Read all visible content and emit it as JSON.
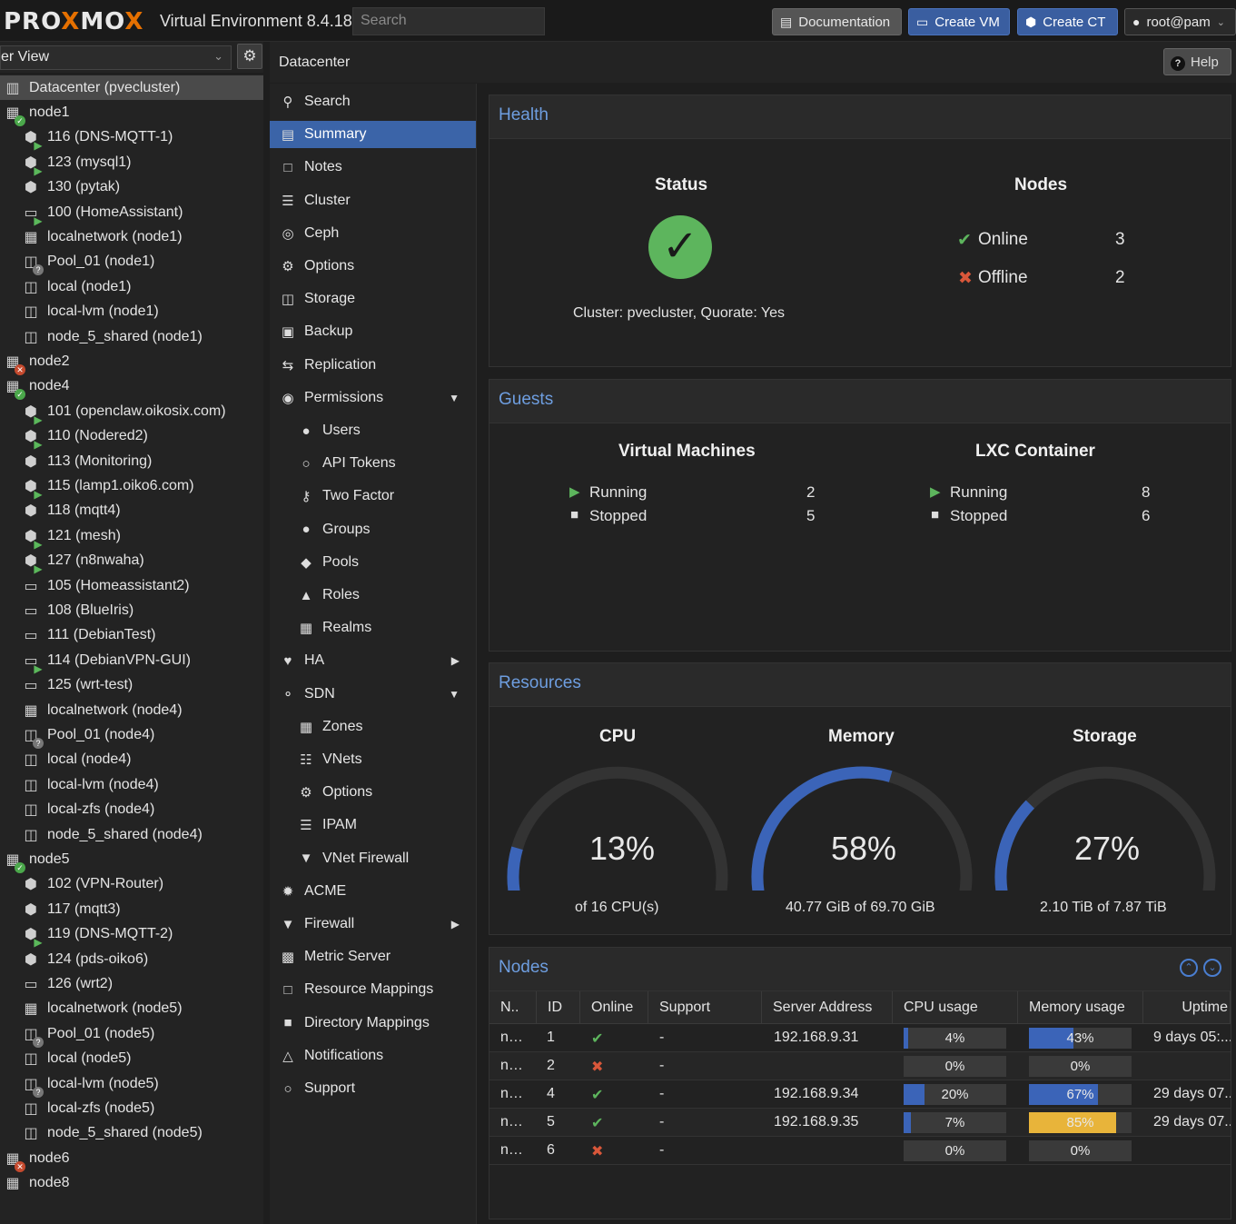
{
  "header": {
    "logo": "PROXMOX",
    "product": "Virtual Environment 8.4.18",
    "search_placeholder": "Search",
    "buttons": {
      "documentation": "Documentation",
      "create_vm": "Create VM",
      "create_ct": "Create CT",
      "user": "root@pam"
    }
  },
  "tree": {
    "view": "er View",
    "items": [
      {
        "label": "Datacenter (pvecluster)",
        "icon": "datacenter-icon"
      },
      {
        "label": "node1",
        "icon": "node-online-icon"
      },
      {
        "label": "116 (DNS-MQTT-1)",
        "icon": "container-running-icon"
      },
      {
        "label": "123 (mysql1)",
        "icon": "container-running-icon"
      },
      {
        "label": "130 (pytak)",
        "icon": "container-stopped-icon"
      },
      {
        "label": "100 (HomeAssistant)",
        "icon": "vm-running-icon"
      },
      {
        "label": "localnetwork (node1)",
        "icon": "network-icon"
      },
      {
        "label": "Pool_01 (node1)",
        "icon": "storage-unknown-icon"
      },
      {
        "label": "local (node1)",
        "icon": "storage-icon"
      },
      {
        "label": "local-lvm (node1)",
        "icon": "storage-icon"
      },
      {
        "label": "node_5_shared (node1)",
        "icon": "storage-icon"
      },
      {
        "label": "node2",
        "icon": "node-offline-icon"
      },
      {
        "label": "node4",
        "icon": "node-online-icon"
      },
      {
        "label": "101 (openclaw.oikosix.com)",
        "icon": "container-running-icon"
      },
      {
        "label": "110 (Nodered2)",
        "icon": "container-running-icon"
      },
      {
        "label": "113 (Monitoring)",
        "icon": "container-stopped-icon"
      },
      {
        "label": "115 (lamp1.oiko6.com)",
        "icon": "container-running-icon"
      },
      {
        "label": "118 (mqtt4)",
        "icon": "container-stopped-icon"
      },
      {
        "label": "121 (mesh)",
        "icon": "container-running-icon"
      },
      {
        "label": "127 (n8nwaha)",
        "icon": "container-running-icon"
      },
      {
        "label": "105 (Homeassistant2)",
        "icon": "vm-stopped-icon"
      },
      {
        "label": "108 (BlueIris)",
        "icon": "vm-stopped-icon"
      },
      {
        "label": "111 (DebianTest)",
        "icon": "vm-stopped-icon"
      },
      {
        "label": "114 (DebianVPN-GUI)",
        "icon": "vm-running-icon"
      },
      {
        "label": "125 (wrt-test)",
        "icon": "vm-stopped-icon"
      },
      {
        "label": "localnetwork (node4)",
        "icon": "network-icon"
      },
      {
        "label": "Pool_01 (node4)",
        "icon": "storage-unknown-icon"
      },
      {
        "label": "local (node4)",
        "icon": "storage-icon"
      },
      {
        "label": "local-lvm (node4)",
        "icon": "storage-icon"
      },
      {
        "label": "local-zfs (node4)",
        "icon": "storage-icon"
      },
      {
        "label": "node_5_shared (node4)",
        "icon": "storage-icon"
      },
      {
        "label": "node5",
        "icon": "node-online-icon"
      },
      {
        "label": "102 (VPN-Router)",
        "icon": "container-stopped-icon"
      },
      {
        "label": "117 (mqtt3)",
        "icon": "container-stopped-icon"
      },
      {
        "label": "119 (DNS-MQTT-2)",
        "icon": "container-running-icon"
      },
      {
        "label": "124 (pds-oiko6)",
        "icon": "container-stopped-icon"
      },
      {
        "label": "126 (wrt2)",
        "icon": "vm-stopped-icon"
      },
      {
        "label": "localnetwork (node5)",
        "icon": "network-icon"
      },
      {
        "label": "Pool_01 (node5)",
        "icon": "storage-unknown-icon"
      },
      {
        "label": "local (node5)",
        "icon": "storage-icon"
      },
      {
        "label": "local-lvm (node5)",
        "icon": "storage-unknown-icon"
      },
      {
        "label": "local-zfs (node5)",
        "icon": "storage-icon"
      },
      {
        "label": "node_5_shared (node5)",
        "icon": "storage-icon"
      },
      {
        "label": "node6",
        "icon": "node-offline-icon"
      },
      {
        "label": "node8",
        "icon": "node-icon"
      }
    ]
  },
  "breadcrumb": "Datacenter",
  "help_label": "Help",
  "menu": [
    {
      "label": "Search",
      "icon": "search-icon",
      "sub": false
    },
    {
      "label": "Summary",
      "icon": "book-icon",
      "sub": false,
      "selected": true
    },
    {
      "label": "Notes",
      "icon": "notes-icon",
      "sub": false
    },
    {
      "label": "Cluster",
      "icon": "cluster-icon",
      "sub": false
    },
    {
      "label": "Ceph",
      "icon": "ceph-icon",
      "sub": false
    },
    {
      "label": "Options",
      "icon": "gear-icon",
      "sub": false
    },
    {
      "label": "Storage",
      "icon": "database-icon",
      "sub": false
    },
    {
      "label": "Backup",
      "icon": "floppy-icon",
      "sub": false
    },
    {
      "label": "Replication",
      "icon": "retweet-icon",
      "sub": false
    },
    {
      "label": "Permissions",
      "icon": "unlock-icon",
      "sub": false,
      "caret": "down"
    },
    {
      "label": "Users",
      "icon": "user-icon",
      "sub": true
    },
    {
      "label": "API Tokens",
      "icon": "user-outline-icon",
      "sub": true
    },
    {
      "label": "Two Factor",
      "icon": "key-icon",
      "sub": true
    },
    {
      "label": "Groups",
      "icon": "users-icon",
      "sub": true
    },
    {
      "label": "Pools",
      "icon": "tags-icon",
      "sub": true
    },
    {
      "label": "Roles",
      "icon": "male-icon",
      "sub": true
    },
    {
      "label": "Realms",
      "icon": "address-book-icon",
      "sub": true
    },
    {
      "label": "HA",
      "icon": "heartbeat-icon",
      "sub": false,
      "caret": "right"
    },
    {
      "label": "SDN",
      "icon": "sdn-icon",
      "sub": false,
      "caret": "down"
    },
    {
      "label": "Zones",
      "icon": "th-icon",
      "sub": true
    },
    {
      "label": "VNets",
      "icon": "sitemap-icon",
      "sub": true
    },
    {
      "label": "Options",
      "icon": "gear-icon",
      "sub": true
    },
    {
      "label": "IPAM",
      "icon": "ipam-icon",
      "sub": true
    },
    {
      "label": "VNet Firewall",
      "icon": "shield-icon",
      "sub": true
    },
    {
      "label": "ACME",
      "icon": "certificate-icon",
      "sub": false
    },
    {
      "label": "Firewall",
      "icon": "shield-icon",
      "sub": false,
      "caret": "right"
    },
    {
      "label": "Metric Server",
      "icon": "bar-chart-icon",
      "sub": false
    },
    {
      "label": "Resource Mappings",
      "icon": "folder-outline-icon",
      "sub": false
    },
    {
      "label": "Directory Mappings",
      "icon": "folder-icon",
      "sub": false
    },
    {
      "label": "Notifications",
      "icon": "bell-icon",
      "sub": false
    },
    {
      "label": "Support",
      "icon": "comments-icon",
      "sub": false
    }
  ],
  "health": {
    "title": "Health",
    "status_title": "Status",
    "status_text": "Cluster: pvecluster, Quorate: Yes",
    "nodes_title": "Nodes",
    "online_label": "Online",
    "online_count": "3",
    "offline_label": "Offline",
    "offline_count": "2"
  },
  "guests": {
    "title": "Guests",
    "vm_title": "Virtual Machines",
    "lxc_title": "LXC Container",
    "running_label": "Running",
    "stopped_label": "Stopped",
    "vm_running": "2",
    "vm_stopped": "5",
    "lxc_running": "8",
    "lxc_stopped": "6"
  },
  "resources": {
    "title": "Resources",
    "cpu": {
      "title": "CPU",
      "percent": 13,
      "label": "13%",
      "sub": "of 16 CPU(s)"
    },
    "memory": {
      "title": "Memory",
      "percent": 58,
      "label": "58%",
      "sub": "40.77 GiB of 69.70 GiB"
    },
    "storage": {
      "title": "Storage",
      "percent": 27,
      "label": "27%",
      "sub": "2.10 TiB of 7.87 TiB"
    }
  },
  "nodes_table": {
    "title": "Nodes",
    "columns": [
      "N..",
      "ID",
      "Online",
      "Support",
      "Server Address",
      "CPU usage",
      "Memory usage",
      "Uptime"
    ],
    "rows": [
      {
        "name": "n…",
        "id": "1",
        "online": true,
        "support": "-",
        "address": "192.168.9.31",
        "cpu": 4,
        "cpu_label": "4%",
        "mem": 43,
        "mem_label": "43%",
        "uptime": "9 days 05:..."
      },
      {
        "name": "n…",
        "id": "2",
        "online": false,
        "support": "-",
        "address": "",
        "cpu": 0,
        "cpu_label": "0%",
        "mem": 0,
        "mem_label": "0%",
        "uptime": ""
      },
      {
        "name": "n…",
        "id": "4",
        "online": true,
        "support": "-",
        "address": "192.168.9.34",
        "cpu": 20,
        "cpu_label": "20%",
        "mem": 67,
        "mem_label": "67%",
        "uptime": "29 days 07..."
      },
      {
        "name": "n…",
        "id": "5",
        "online": true,
        "support": "-",
        "address": "192.168.9.35",
        "cpu": 7,
        "cpu_label": "7%",
        "mem": 85,
        "mem_label": "85%",
        "uptime": "29 days 07..."
      },
      {
        "name": "n…",
        "id": "6",
        "online": false,
        "support": "-",
        "address": "",
        "cpu": 0,
        "cpu_label": "0%",
        "mem": 0,
        "mem_label": "0%",
        "uptime": ""
      }
    ]
  },
  "colors": {
    "accent": "#3b64a8",
    "ok": "#5db55d",
    "error": "#d9573a",
    "warn": "#e8b43a",
    "heading": "#6e9ee0"
  }
}
